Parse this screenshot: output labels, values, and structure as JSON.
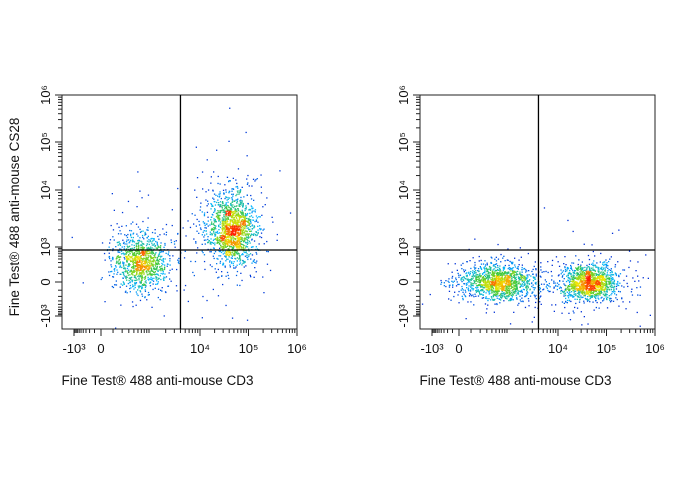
{
  "chart_data": [
    {
      "type": "scatter",
      "subtype": "flow-cytometry-density-dot-plot",
      "xlabel": "Fine Test® 488 anti-mouse CD3",
      "ylabel": "Fine Test® 488 anti-mouse CS28",
      "x_scale": "biexponential",
      "y_scale": "biexponential",
      "xlim": [
        -1500,
        1000000
      ],
      "ylim": [
        -2000,
        1000000
      ],
      "x_ticks": [
        {
          "value": -1000,
          "label": "-10³"
        },
        {
          "value": 0,
          "label": "0"
        },
        {
          "value": 10000,
          "label": "10⁴"
        },
        {
          "value": 100000,
          "label": "10⁵"
        },
        {
          "value": 1000000,
          "label": "10⁶"
        }
      ],
      "y_ticks": [
        {
          "value": -1000,
          "label": "-10³"
        },
        {
          "value": 0,
          "label": "0"
        },
        {
          "value": 1000,
          "label": "10³"
        },
        {
          "value": 10000,
          "label": "10⁴"
        },
        {
          "value": 100000,
          "label": "10⁵"
        },
        {
          "value": 1000000,
          "label": "10⁶"
        }
      ],
      "quadrant_gate": {
        "x": 4000,
        "y": 800
      },
      "populations": [
        {
          "x_center": 600,
          "y_center": 300,
          "events": 1100
        },
        {
          "x_center": 45000,
          "y_center": 2000,
          "events": 1500
        }
      ],
      "colormap": [
        "#0000c8",
        "#00b4ff",
        "#3cc83c",
        "#f0e600",
        "#ff1e00"
      ]
    },
    {
      "type": "scatter",
      "subtype": "flow-cytometry-density-dot-plot",
      "xlabel": "Fine Test® 488 anti-mouse CD3",
      "ylabel": "",
      "x_scale": "biexponential",
      "y_scale": "biexponential",
      "xlim": [
        -1500,
        1000000
      ],
      "ylim": [
        -2000,
        1000000
      ],
      "x_ticks": [
        {
          "value": -1000,
          "label": "-10³"
        },
        {
          "value": 0,
          "label": "0"
        },
        {
          "value": 10000,
          "label": "10⁴"
        },
        {
          "value": 100000,
          "label": "10⁵"
        },
        {
          "value": 1000000,
          "label": "10⁶"
        }
      ],
      "y_ticks": [
        {
          "value": -1000,
          "label": "-10³"
        },
        {
          "value": 0,
          "label": "0"
        },
        {
          "value": 1000,
          "label": "10³"
        },
        {
          "value": 10000,
          "label": "10⁴"
        },
        {
          "value": 100000,
          "label": "10⁵"
        },
        {
          "value": 1000000,
          "label": "10⁶"
        }
      ],
      "quadrant_gate": {
        "x": 4000,
        "y": 800
      },
      "populations": [
        {
          "x_center": 600,
          "y_center": 0,
          "events": 1300
        },
        {
          "x_center": 45000,
          "y_center": 0,
          "events": 1300
        }
      ],
      "colormap": [
        "#0000c8",
        "#00b4ff",
        "#3cc83c",
        "#f0e600",
        "#ff1e00"
      ]
    }
  ]
}
